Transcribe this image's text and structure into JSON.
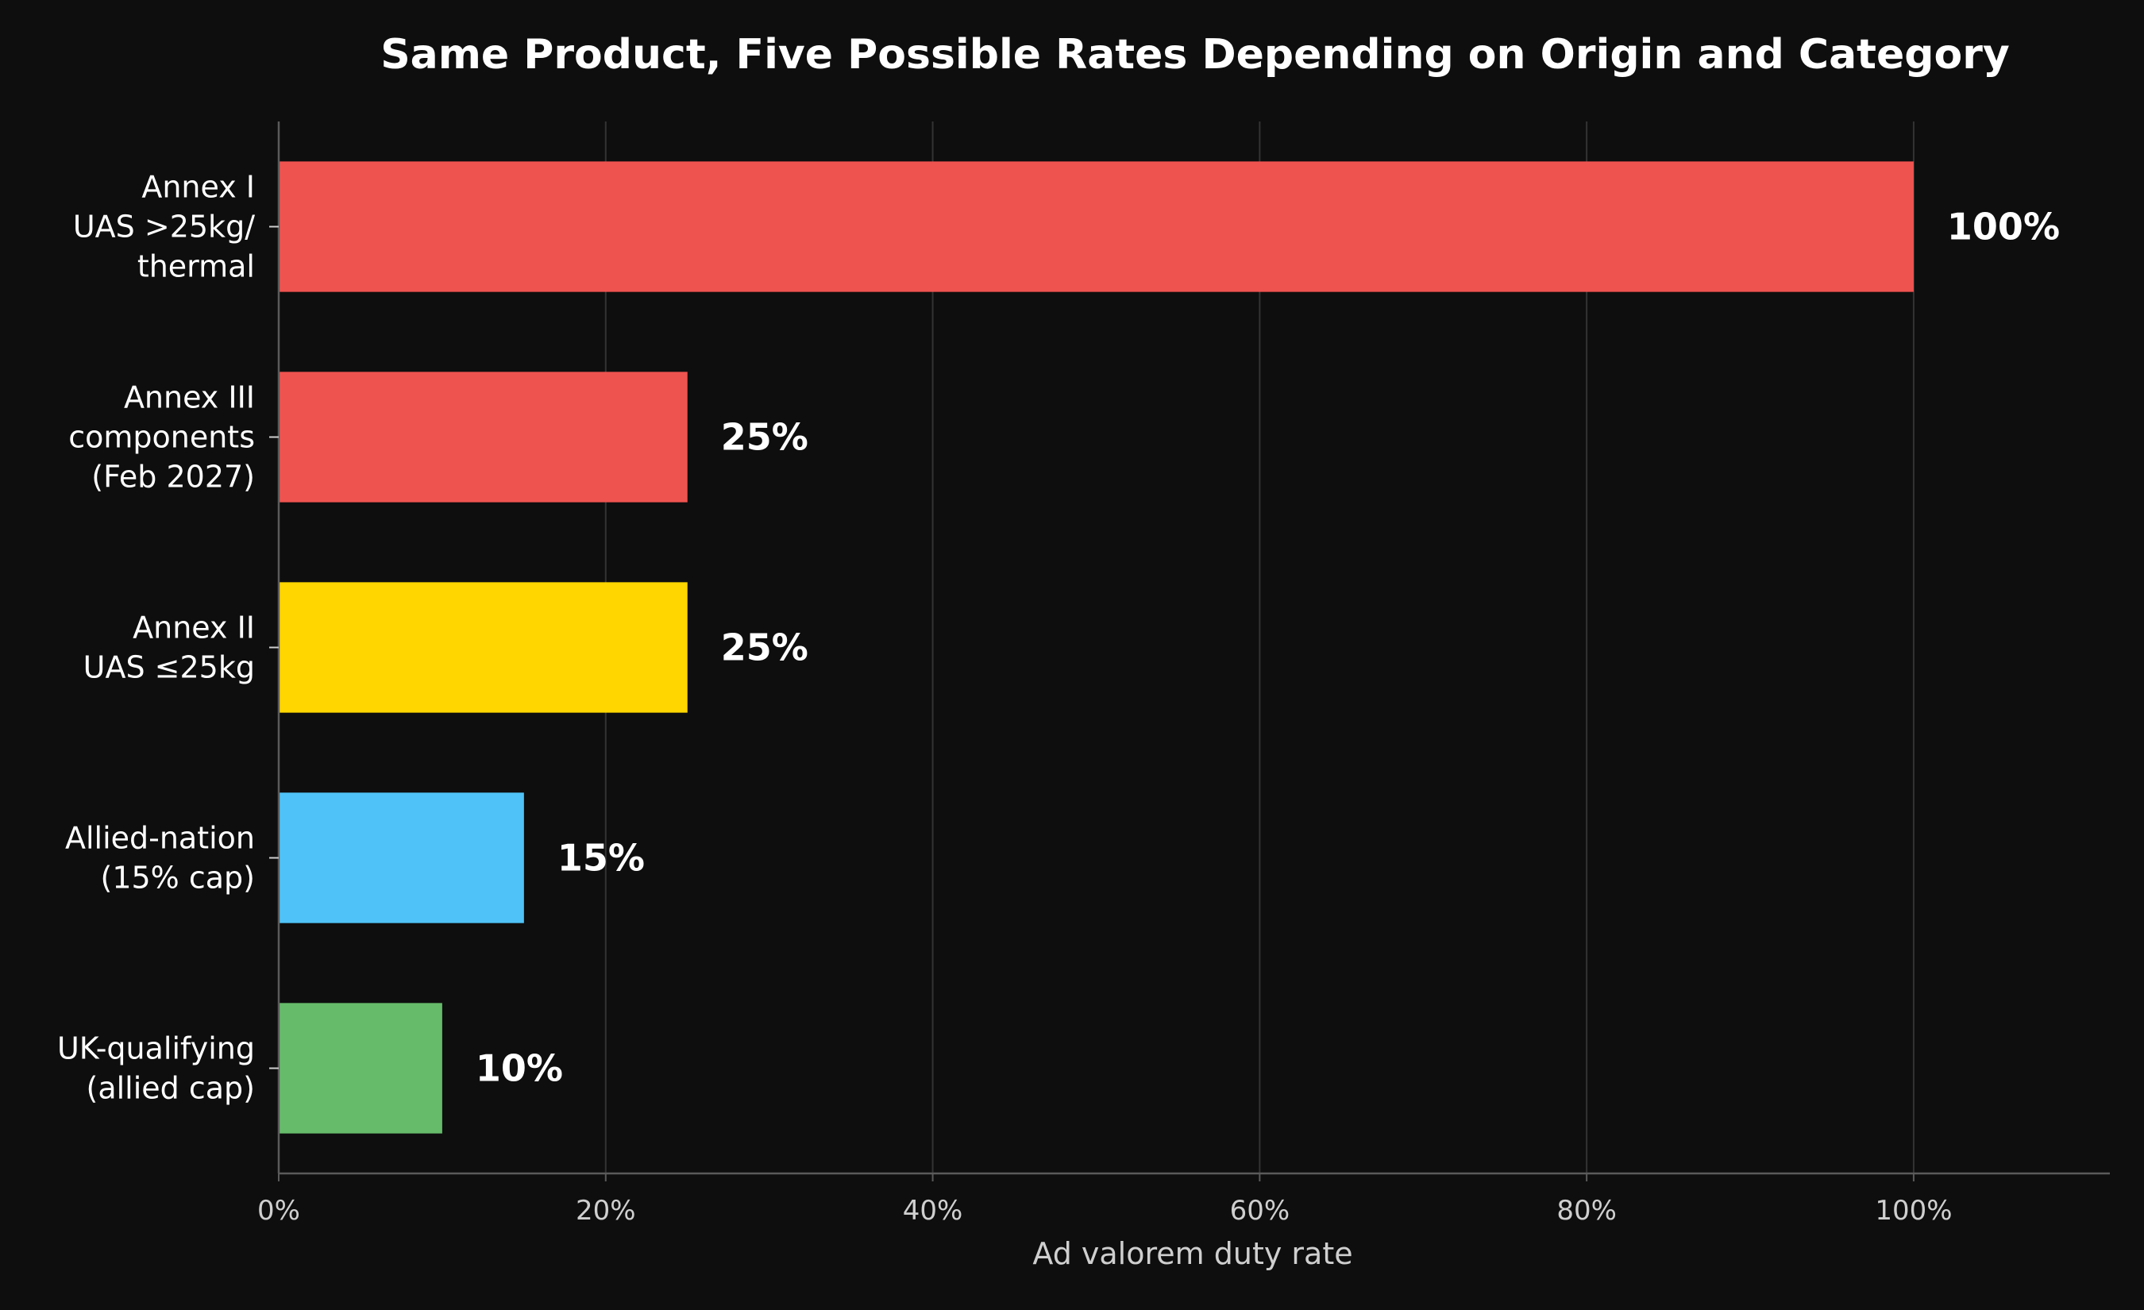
{
  "chart_data": {
    "type": "bar",
    "orientation": "horizontal",
    "title": "Same Product, Five Possible Rates Depending on Origin and Category",
    "xlabel": "Ad valorem duty rate",
    "ylabel": "",
    "xlim": [
      0,
      112
    ],
    "x_ticks": [
      0,
      20,
      40,
      60,
      80,
      100
    ],
    "x_tick_labels": [
      "0%",
      "20%",
      "40%",
      "60%",
      "80%",
      "100%"
    ],
    "grid": "vertical",
    "legend": "none",
    "categories": [
      "Annex I\nUAS >25kg/\nthermal",
      "Annex III\ncomponents\n(Feb 2027)",
      "Annex II\nUAS ≤25kg",
      "Allied-nation\n(15% cap)",
      "UK-qualifying\n(allied cap)"
    ],
    "values": [
      100,
      25,
      25,
      15,
      10
    ],
    "value_labels": [
      "100%",
      "25%",
      "25%",
      "15%",
      "10%"
    ],
    "colors": [
      "#ef5350",
      "#ef5350",
      "#ffd600",
      "#4fc3f7",
      "#66bb6a"
    ]
  },
  "theme": {
    "background": "#0e0e0e",
    "text": "#ffffff",
    "axis_text": "#cfcfcf",
    "grid": "#333333",
    "axis_line": "#5a5a5a"
  }
}
